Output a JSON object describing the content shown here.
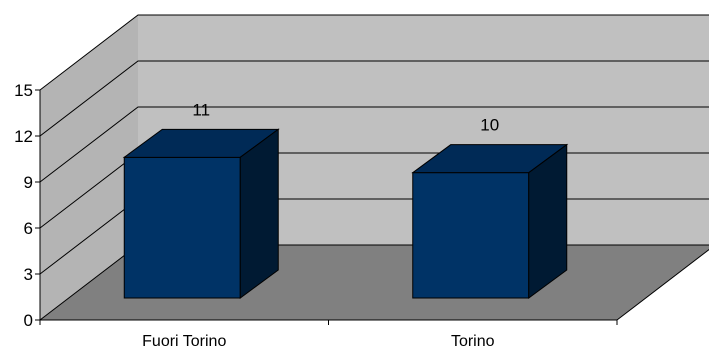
{
  "chart_data": {
    "type": "bar",
    "categories": [
      "Fuori Torino",
      "Torino"
    ],
    "values": [
      11,
      10
    ],
    "data_labels": [
      "11",
      "10"
    ],
    "ylim": [
      0,
      15
    ],
    "yticks": [
      0,
      3,
      6,
      9,
      12,
      15
    ],
    "ytick_labels": [
      "0",
      "3",
      "6",
      "9",
      "12",
      "15"
    ],
    "grid": true,
    "legend": "none",
    "three_d": true,
    "colors": {
      "bar_front": "#003366",
      "bar_top": "#002a56",
      "bar_side": "#001a33",
      "back_wall": "#c0c0c0",
      "side_wall": "#b4b4b4",
      "floor": "#808080",
      "gridline": "#000000"
    }
  }
}
